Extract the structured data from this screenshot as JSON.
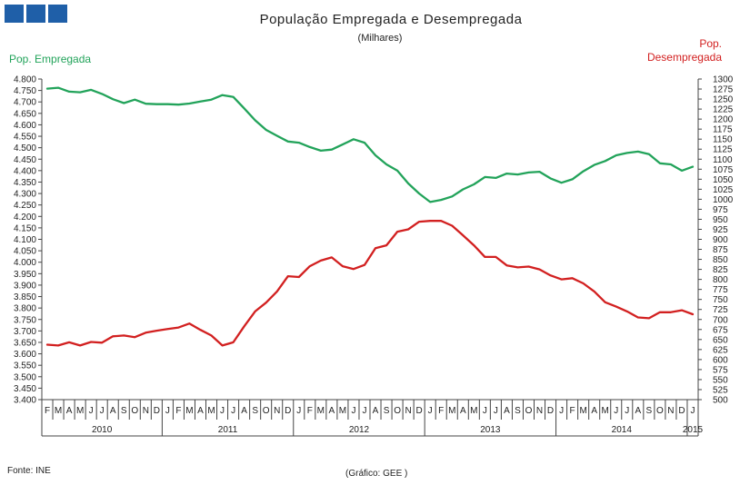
{
  "logo_color": "#1f5fa8",
  "chart_data": {
    "type": "line",
    "title": "População Empregada e Desempregada",
    "subtitle": "(Milhares)",
    "source": "Fonte: INE",
    "credit": "(Gráfico: GEE )",
    "months": [
      "F",
      "M",
      "A",
      "M",
      "J",
      "J",
      "A",
      "S",
      "O",
      "N",
      "D",
      "J",
      "F",
      "M",
      "A",
      "M",
      "J",
      "J",
      "A",
      "S",
      "O",
      "N",
      "D",
      "J",
      "F",
      "M",
      "A",
      "M",
      "J",
      "J",
      "A",
      "S",
      "O",
      "N",
      "D",
      "J",
      "F",
      "M",
      "A",
      "M",
      "J",
      "J",
      "A",
      "S",
      "O",
      "N",
      "D",
      "J",
      "F",
      "M",
      "A",
      "M",
      "J",
      "J",
      "A",
      "S",
      "O",
      "N",
      "D",
      "J"
    ],
    "years": [
      {
        "label": "2010",
        "start": 0,
        "end": 11
      },
      {
        "label": "2011",
        "start": 11,
        "end": 23
      },
      {
        "label": "2012",
        "start": 23,
        "end": 35
      },
      {
        "label": "2013",
        "start": 35,
        "end": 47
      },
      {
        "label": "2014",
        "start": 47,
        "end": 59
      },
      {
        "label": "2015",
        "start": 59,
        "end": 60
      }
    ],
    "left_axis": {
      "label": "Pop. Empregada",
      "ylim": [
        3400,
        4800
      ],
      "ticks": [
        "3.400",
        "3.450",
        "3.500",
        "3.550",
        "3.600",
        "3.650",
        "3.700",
        "3.750",
        "3.800",
        "3.850",
        "3.900",
        "3.950",
        "4.000",
        "4.050",
        "4.100",
        "4.150",
        "4.200",
        "4.250",
        "4.300",
        "4.350",
        "4.400",
        "4.450",
        "4.500",
        "4.550",
        "4.600",
        "4.650",
        "4.700",
        "4.750",
        "4.800"
      ]
    },
    "right_axis": {
      "label_line1": "Pop.",
      "label_line2": "Desempregada",
      "ylim": [
        500,
        1300
      ],
      "ticks": [
        "500",
        "525",
        "550",
        "575",
        "600",
        "625",
        "650",
        "675",
        "700",
        "725",
        "750",
        "775",
        "800",
        "825",
        "850",
        "875",
        "900",
        "925",
        "950",
        "975",
        "1000",
        "1025",
        "1050",
        "1075",
        "1100",
        "1125",
        "1150",
        "1175",
        "1200",
        "1225",
        "1250",
        "1275",
        "1300"
      ]
    },
    "series": [
      {
        "name": "Pop. Empregada",
        "axis": "left",
        "color": "#22a35a",
        "values": [
          4758,
          4762,
          4745,
          4742,
          4753,
          4735,
          4712,
          4695,
          4710,
          4692,
          4690,
          4690,
          4688,
          4693,
          4702,
          4710,
          4730,
          4722,
          4672,
          4620,
          4578,
          4552,
          4527,
          4522,
          4503,
          4487,
          4492,
          4514,
          4537,
          4522,
          4467,
          4427,
          4400,
          4344,
          4300,
          4263,
          4272,
          4287,
          4318,
          4340,
          4372,
          4368,
          4387,
          4383,
          4392,
          4395,
          4366,
          4347,
          4362,
          4397,
          4425,
          4442,
          4467,
          4477,
          4483,
          4472,
          4432,
          4427,
          4400,
          4417
        ]
      },
      {
        "name": "Pop. Desempregada",
        "axis": "right",
        "color": "#d22020",
        "values": [
          637,
          635,
          643,
          635,
          644,
          642,
          658,
          660,
          656,
          667,
          672,
          676,
          680,
          690,
          674,
          660,
          635,
          643,
          683,
          720,
          742,
          770,
          808,
          806,
          833,
          847,
          855,
          833,
          826,
          836,
          878,
          885,
          919,
          925,
          944,
          946,
          946,
          934,
          910,
          885,
          856,
          856,
          835,
          830,
          832,
          825,
          810,
          800,
          803,
          790,
          770,
          743,
          732,
          720,
          705,
          703,
          718,
          718,
          723,
          713
        ]
      }
    ]
  }
}
